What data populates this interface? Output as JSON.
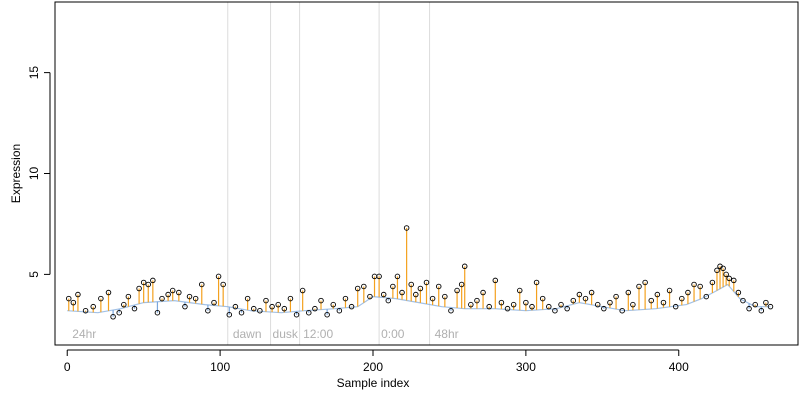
{
  "chart_data": {
    "type": "scatter",
    "title": "",
    "xlabel": "Sample index",
    "ylabel": "Expression",
    "xlim": [
      -8,
      478
    ],
    "ylim": [
      1.5,
      18.5
    ],
    "x_ticks": [
      0,
      100,
      200,
      300,
      400
    ],
    "y_ticks": [
      5,
      10,
      15
    ],
    "grid": false,
    "legend": "none",
    "baseline_series": {
      "name": "",
      "color": "#7aa6dc",
      "knots": [
        [
          0,
          3.2
        ],
        [
          20,
          3.1
        ],
        [
          35,
          3.3
        ],
        [
          50,
          3.6
        ],
        [
          70,
          3.7
        ],
        [
          90,
          3.5
        ],
        [
          105,
          3.4
        ],
        [
          120,
          3.2
        ],
        [
          140,
          3.1
        ],
        [
          155,
          3.2
        ],
        [
          175,
          3.3
        ],
        [
          190,
          3.4
        ],
        [
          200,
          3.9
        ],
        [
          215,
          3.8
        ],
        [
          230,
          3.6
        ],
        [
          245,
          3.4
        ],
        [
          260,
          3.3
        ],
        [
          280,
          3.3
        ],
        [
          300,
          3.2
        ],
        [
          320,
          3.3
        ],
        [
          335,
          3.6
        ],
        [
          350,
          3.4
        ],
        [
          365,
          3.2
        ],
        [
          385,
          3.3
        ],
        [
          405,
          3.5
        ],
        [
          415,
          3.8
        ],
        [
          425,
          4.2
        ],
        [
          432,
          4.5
        ],
        [
          440,
          3.8
        ],
        [
          450,
          3.4
        ],
        [
          460,
          3.4
        ]
      ]
    },
    "points": [
      {
        "x": 1,
        "y": 3.8
      },
      {
        "x": 4,
        "y": 3.6
      },
      {
        "x": 7,
        "y": 4.0
      },
      {
        "x": 12,
        "y": 3.2
      },
      {
        "x": 17,
        "y": 3.4
      },
      {
        "x": 22,
        "y": 3.8
      },
      {
        "x": 27,
        "y": 4.1
      },
      {
        "x": 30,
        "y": 2.9
      },
      {
        "x": 34,
        "y": 3.1
      },
      {
        "x": 37,
        "y": 3.5
      },
      {
        "x": 40,
        "y": 3.9
      },
      {
        "x": 44,
        "y": 3.3
      },
      {
        "x": 47,
        "y": 4.3
      },
      {
        "x": 50,
        "y": 4.6
      },
      {
        "x": 53,
        "y": 4.5
      },
      {
        "x": 56,
        "y": 4.7
      },
      {
        "x": 59,
        "y": 3.1
      },
      {
        "x": 62,
        "y": 3.8
      },
      {
        "x": 66,
        "y": 4.0
      },
      {
        "x": 69,
        "y": 4.2
      },
      {
        "x": 73,
        "y": 4.1
      },
      {
        "x": 77,
        "y": 3.4
      },
      {
        "x": 80,
        "y": 3.9
      },
      {
        "x": 84,
        "y": 3.8
      },
      {
        "x": 88,
        "y": 4.5
      },
      {
        "x": 92,
        "y": 3.2
      },
      {
        "x": 96,
        "y": 3.6
      },
      {
        "x": 99,
        "y": 4.9
      },
      {
        "x": 102,
        "y": 4.5
      },
      {
        "x": 106,
        "y": 3.0
      },
      {
        "x": 110,
        "y": 3.4
      },
      {
        "x": 114,
        "y": 3.1
      },
      {
        "x": 118,
        "y": 3.8
      },
      {
        "x": 122,
        "y": 3.3
      },
      {
        "x": 126,
        "y": 3.2
      },
      {
        "x": 130,
        "y": 3.7
      },
      {
        "x": 134,
        "y": 3.4
      },
      {
        "x": 138,
        "y": 3.5
      },
      {
        "x": 142,
        "y": 3.3
      },
      {
        "x": 146,
        "y": 3.8
      },
      {
        "x": 150,
        "y": 3.0
      },
      {
        "x": 154,
        "y": 4.2
      },
      {
        "x": 158,
        "y": 3.1
      },
      {
        "x": 162,
        "y": 3.3
      },
      {
        "x": 166,
        "y": 3.7
      },
      {
        "x": 170,
        "y": 3.0
      },
      {
        "x": 174,
        "y": 3.5
      },
      {
        "x": 178,
        "y": 3.2
      },
      {
        "x": 182,
        "y": 3.8
      },
      {
        "x": 186,
        "y": 3.4
      },
      {
        "x": 190,
        "y": 4.3
      },
      {
        "x": 194,
        "y": 4.4
      },
      {
        "x": 198,
        "y": 3.9
      },
      {
        "x": 201,
        "y": 4.9
      },
      {
        "x": 204,
        "y": 4.9
      },
      {
        "x": 207,
        "y": 4.0
      },
      {
        "x": 210,
        "y": 3.7
      },
      {
        "x": 213,
        "y": 4.4
      },
      {
        "x": 216,
        "y": 4.9
      },
      {
        "x": 219,
        "y": 4.1
      },
      {
        "x": 222,
        "y": 7.3
      },
      {
        "x": 225,
        "y": 4.5
      },
      {
        "x": 228,
        "y": 4.0
      },
      {
        "x": 231,
        "y": 4.3
      },
      {
        "x": 235,
        "y": 4.6
      },
      {
        "x": 239,
        "y": 3.8
      },
      {
        "x": 243,
        "y": 4.4
      },
      {
        "x": 247,
        "y": 3.9
      },
      {
        "x": 251,
        "y": 3.2
      },
      {
        "x": 255,
        "y": 4.2
      },
      {
        "x": 258,
        "y": 4.5
      },
      {
        "x": 260,
        "y": 5.4
      },
      {
        "x": 264,
        "y": 3.5
      },
      {
        "x": 268,
        "y": 3.7
      },
      {
        "x": 272,
        "y": 4.1
      },
      {
        "x": 276,
        "y": 3.4
      },
      {
        "x": 280,
        "y": 4.7
      },
      {
        "x": 284,
        "y": 3.6
      },
      {
        "x": 288,
        "y": 3.3
      },
      {
        "x": 292,
        "y": 3.5
      },
      {
        "x": 296,
        "y": 4.2
      },
      {
        "x": 300,
        "y": 3.6
      },
      {
        "x": 304,
        "y": 3.4
      },
      {
        "x": 307,
        "y": 4.6
      },
      {
        "x": 311,
        "y": 3.8
      },
      {
        "x": 315,
        "y": 3.4
      },
      {
        "x": 319,
        "y": 3.2
      },
      {
        "x": 323,
        "y": 3.5
      },
      {
        "x": 327,
        "y": 3.3
      },
      {
        "x": 331,
        "y": 3.7
      },
      {
        "x": 335,
        "y": 4.0
      },
      {
        "x": 339,
        "y": 3.8
      },
      {
        "x": 343,
        "y": 4.1
      },
      {
        "x": 347,
        "y": 3.5
      },
      {
        "x": 351,
        "y": 3.3
      },
      {
        "x": 355,
        "y": 3.6
      },
      {
        "x": 359,
        "y": 3.9
      },
      {
        "x": 363,
        "y": 3.2
      },
      {
        "x": 367,
        "y": 4.1
      },
      {
        "x": 370,
        "y": 3.5
      },
      {
        "x": 374,
        "y": 4.4
      },
      {
        "x": 378,
        "y": 4.6
      },
      {
        "x": 382,
        "y": 3.7
      },
      {
        "x": 386,
        "y": 4.0
      },
      {
        "x": 390,
        "y": 3.6
      },
      {
        "x": 394,
        "y": 4.2
      },
      {
        "x": 398,
        "y": 3.4
      },
      {
        "x": 402,
        "y": 3.8
      },
      {
        "x": 406,
        "y": 4.1
      },
      {
        "x": 410,
        "y": 4.5
      },
      {
        "x": 414,
        "y": 4.4
      },
      {
        "x": 418,
        "y": 3.9
      },
      {
        "x": 422,
        "y": 4.6
      },
      {
        "x": 425,
        "y": 5.2
      },
      {
        "x": 427,
        "y": 5.4
      },
      {
        "x": 429,
        "y": 5.3
      },
      {
        "x": 431,
        "y": 5.0
      },
      {
        "x": 433,
        "y": 4.8
      },
      {
        "x": 436,
        "y": 4.7
      },
      {
        "x": 439,
        "y": 4.1
      },
      {
        "x": 442,
        "y": 3.7
      },
      {
        "x": 446,
        "y": 3.3
      },
      {
        "x": 450,
        "y": 3.5
      },
      {
        "x": 454,
        "y": 3.2
      },
      {
        "x": 457,
        "y": 3.6
      },
      {
        "x": 460,
        "y": 3.4
      }
    ],
    "regions": [
      {
        "label": "24hr",
        "x_start": 0,
        "x_end": 105,
        "label_x": 2
      },
      {
        "label": "dawn",
        "x_start": 105,
        "x_end": 133,
        "label_x": 107
      },
      {
        "label": "dusk",
        "x_start": 133,
        "x_end": 152,
        "label_x": 133
      },
      {
        "label": "12:00",
        "x_start": 152,
        "x_end": 204,
        "label_x": 153
      },
      {
        "label": "0:00",
        "x_start": 204,
        "x_end": 237,
        "label_x": 204
      },
      {
        "label": "48hr",
        "x_start": 237,
        "x_end": 460,
        "label_x": 239
      }
    ],
    "region_boundaries": [
      105,
      133,
      152,
      204,
      237
    ],
    "colors": {
      "points_stroke": "#000000",
      "up_stem": "#f4a11e",
      "down_stem": "#7aa6dc",
      "boundary": "#dcdcdc",
      "region_label": "#b0b0b0"
    }
  }
}
